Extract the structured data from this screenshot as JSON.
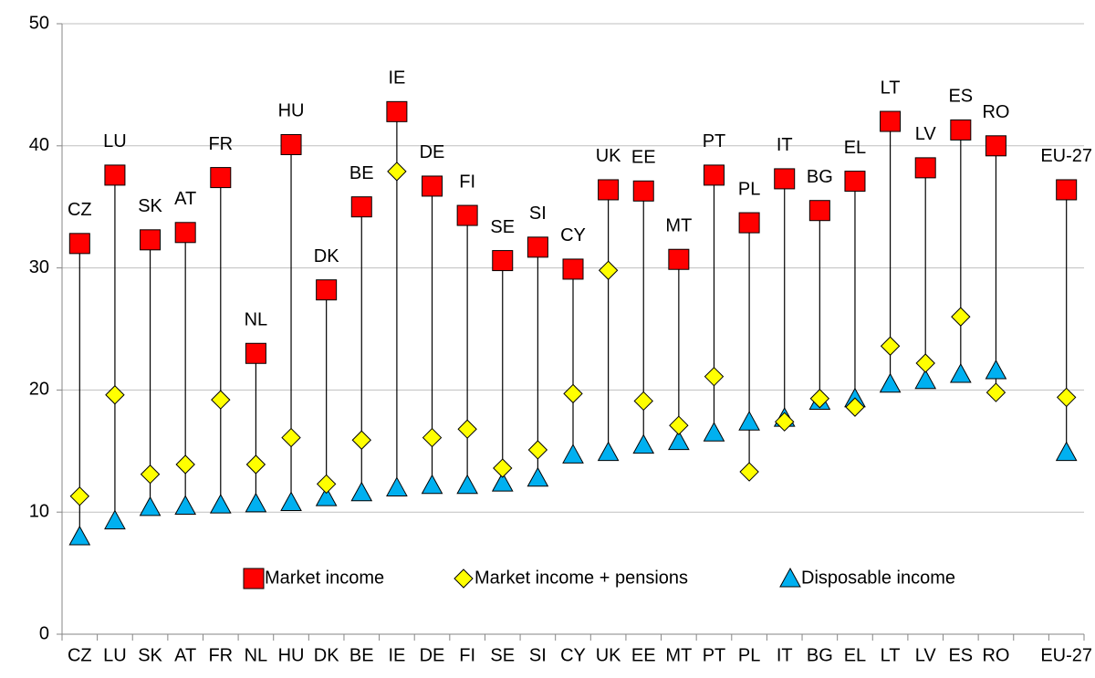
{
  "chart_data": {
    "type": "dotrange",
    "categories": [
      "CZ",
      "LU",
      "SK",
      "AT",
      "FR",
      "NL",
      "HU",
      "DK",
      "BE",
      "IE",
      "DE",
      "FI",
      "SE",
      "SI",
      "CY",
      "UK",
      "EE",
      "MT",
      "PT",
      "PL",
      "IT",
      "BG",
      "EL",
      "LT",
      "LV",
      "ES",
      "RO",
      null,
      "EU-27"
    ],
    "series": [
      {
        "name": "Market income",
        "color": "#ff0000",
        "marker": "square",
        "values": [
          32.0,
          37.6,
          32.3,
          32.9,
          37.4,
          23.0,
          40.1,
          28.2,
          35.0,
          42.8,
          36.7,
          34.3,
          30.6,
          31.7,
          29.9,
          36.4,
          36.3,
          30.7,
          37.6,
          33.7,
          37.3,
          34.7,
          37.1,
          42.0,
          38.2,
          41.3,
          40.0,
          null,
          36.4
        ]
      },
      {
        "name": "Market income + pensions",
        "color": "#ffff00",
        "marker": "diamond",
        "values": [
          11.3,
          19.6,
          13.1,
          13.9,
          19.2,
          13.9,
          16.1,
          12.3,
          15.9,
          37.9,
          16.1,
          16.8,
          13.6,
          15.1,
          19.7,
          29.8,
          19.1,
          17.1,
          21.1,
          13.3,
          17.4,
          19.3,
          18.6,
          23.6,
          22.2,
          26.0,
          19.8,
          null,
          19.4
        ]
      },
      {
        "name": "Disposable income",
        "color": "#00b0f0",
        "marker": "triangle",
        "values": [
          8.0,
          9.3,
          10.4,
          10.5,
          10.6,
          10.7,
          10.8,
          11.2,
          11.6,
          12.0,
          12.2,
          12.2,
          12.4,
          12.8,
          14.7,
          14.9,
          15.5,
          15.8,
          16.5,
          17.4,
          17.7,
          19.1,
          19.3,
          20.5,
          20.8,
          21.3,
          21.6,
          null,
          14.9
        ]
      }
    ],
    "ylim": [
      0,
      50
    ],
    "yticks": [
      0,
      10,
      20,
      30,
      40,
      50
    ],
    "grid": true,
    "legend": "bottom"
  }
}
